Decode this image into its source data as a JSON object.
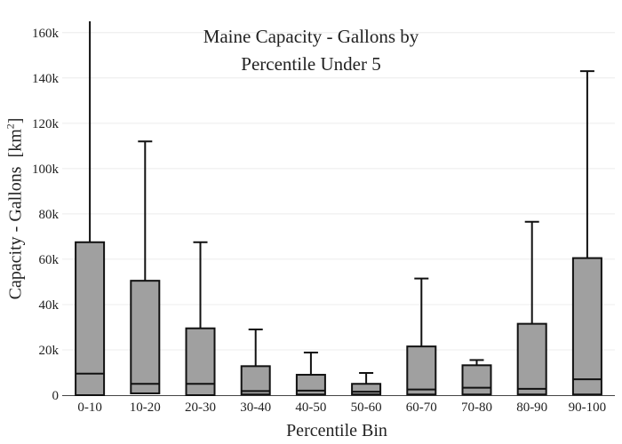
{
  "chart_data": {
    "type": "box",
    "title_line1": "Maine Capacity - Gallons by",
    "title_line2": "Percentile Under 5",
    "xlabel": "Percentile Bin",
    "ylabel": "Capacity - Gallons",
    "ylabel_unit_prefix": "[km",
    "ylabel_unit_sup": "2",
    "ylabel_unit_suffix": "]",
    "ylim": [
      0,
      165000
    ],
    "yticks": [
      0,
      20000,
      40000,
      60000,
      80000,
      100000,
      120000,
      140000,
      160000
    ],
    "ytick_labels": [
      "0",
      "20k",
      "40k",
      "60k",
      "80k",
      "100k",
      "120k",
      "140k",
      "160k"
    ],
    "grid": true,
    "box_color": "#a0a0a0",
    "categories": [
      "0-10",
      "10-20",
      "20-30",
      "30-40",
      "40-50",
      "50-60",
      "60-70",
      "70-80",
      "80-90",
      "90-100"
    ],
    "boxes": [
      {
        "min": 0,
        "q1": 0,
        "median": 9500,
        "q3": 67500,
        "max": 165000
      },
      {
        "min": 0,
        "q1": 800,
        "median": 5000,
        "q3": 50500,
        "max": 112000
      },
      {
        "min": 0,
        "q1": 0,
        "median": 5000,
        "q3": 29500,
        "max": 67500
      },
      {
        "min": 0,
        "q1": 300,
        "median": 1800,
        "q3": 12800,
        "max": 29000
      },
      {
        "min": 0,
        "q1": 300,
        "median": 2000,
        "q3": 9000,
        "max": 18800
      },
      {
        "min": 0,
        "q1": 300,
        "median": 1500,
        "q3": 5000,
        "max": 9800
      },
      {
        "min": 0,
        "q1": 300,
        "median": 2500,
        "q3": 21500,
        "max": 51500
      },
      {
        "min": 0,
        "q1": 300,
        "median": 3300,
        "q3": 13200,
        "max": 15500
      },
      {
        "min": 0,
        "q1": 300,
        "median": 2800,
        "q3": 31500,
        "max": 76500
      },
      {
        "min": 0,
        "q1": 300,
        "median": 7000,
        "q3": 60500,
        "max": 143000
      }
    ]
  }
}
